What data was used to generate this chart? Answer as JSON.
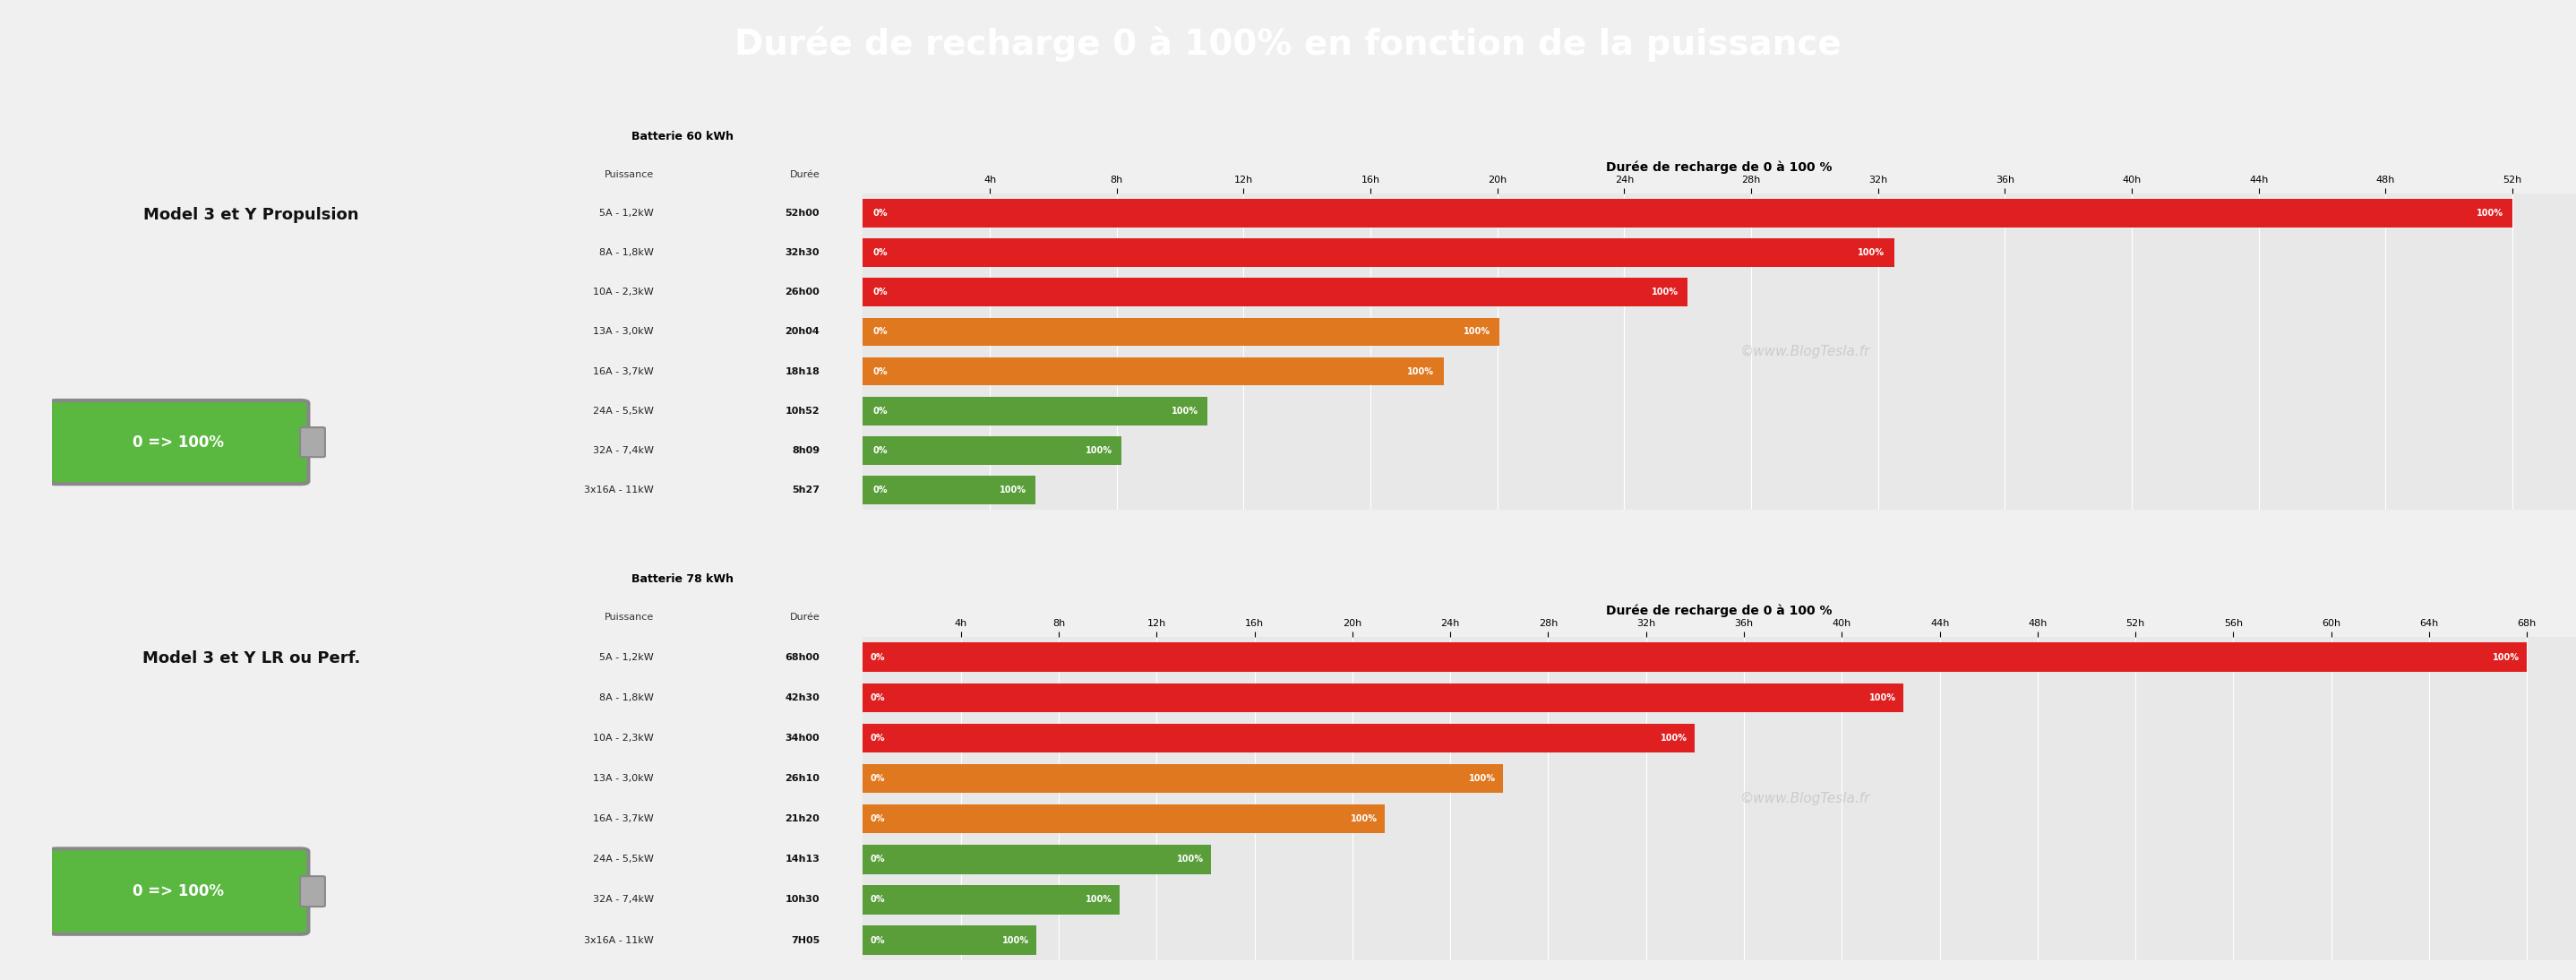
{
  "title": "Durée de recharge 0 à 100% en fonction de la puissance",
  "title_bg": "#1a7bbf",
  "title_color": "white",
  "bg_top": "#e8e8e8",
  "bg_bottom": "#d0d0d0",
  "watermark": "©www.BlogTesla.fr",
  "section1": {
    "label": "Model 3 et Y Propulsion",
    "battery": "Batterie 60 kWh",
    "chart_title": "Durée de recharge de 0 à 100 %",
    "col_headers": [
      "Puissance",
      "Durée"
    ],
    "x_ticks": [
      4,
      8,
      12,
      16,
      20,
      24,
      28,
      32,
      36,
      40,
      44,
      48,
      52
    ],
    "x_max": 54,
    "rows": [
      {
        "power": "5A - 1,2kW",
        "duration": "52h00",
        "hours": 52.0
      },
      {
        "power": "8A - 1,8kW",
        "duration": "32h30",
        "hours": 32.5
      },
      {
        "power": "10A - 2,3kW",
        "duration": "26h00",
        "hours": 26.0
      },
      {
        "power": "13A - 3,0kW",
        "duration": "20h04",
        "hours": 20.067
      },
      {
        "power": "16A - 3,7kW",
        "duration": "18h18",
        "hours": 18.3
      },
      {
        "power": "24A - 5,5kW",
        "duration": "10h52",
        "hours": 10.867
      },
      {
        "power": "32A - 7,4kW",
        "duration": "8h09",
        "hours": 8.15
      },
      {
        "power": "3x16A - 11kW",
        "duration": "5h27",
        "hours": 5.45
      }
    ],
    "bar_colors": [
      "#e02020",
      "#e02020",
      "#e02020",
      "#e07820",
      "#e07820",
      "#5a9e3a",
      "#5a9e3a",
      "#5a9e3a"
    ]
  },
  "section2": {
    "label": "Model 3 et Y LR ou Perf.",
    "battery": "Batterie 78 kWh",
    "chart_title": "Durée de recharge de 0 à 100 %",
    "col_headers": [
      "Puissance",
      "Durée"
    ],
    "x_ticks": [
      4,
      8,
      12,
      16,
      20,
      24,
      28,
      32,
      36,
      40,
      44,
      48,
      52,
      56,
      60,
      64,
      68
    ],
    "x_max": 70,
    "rows": [
      {
        "power": "5A - 1,2kW",
        "duration": "68h00",
        "hours": 68.0
      },
      {
        "power": "8A - 1,8kW",
        "duration": "42h30",
        "hours": 42.5
      },
      {
        "power": "10A - 2,3kW",
        "duration": "34h00",
        "hours": 34.0
      },
      {
        "power": "13A - 3,0kW",
        "duration": "26h10",
        "hours": 26.167
      },
      {
        "power": "16A - 3,7kW",
        "duration": "21h20",
        "hours": 21.333
      },
      {
        "power": "24A - 5,5kW",
        "duration": "14h13",
        "hours": 14.217
      },
      {
        "power": "32A - 7,4kW",
        "duration": "10h30",
        "hours": 10.5
      },
      {
        "power": "3x16A - 11kW",
        "duration": "7H05",
        "hours": 7.083
      }
    ],
    "bar_colors": [
      "#e02020",
      "#e02020",
      "#e02020",
      "#e07820",
      "#e07820",
      "#5a9e3a",
      "#5a9e3a",
      "#5a9e3a"
    ]
  }
}
